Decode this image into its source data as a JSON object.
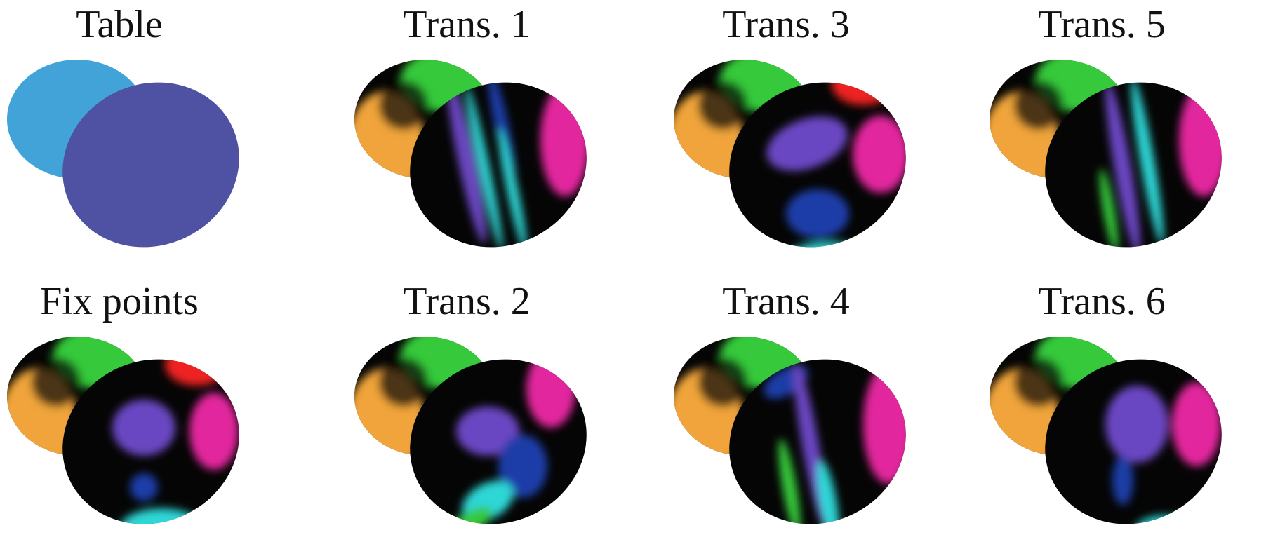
{
  "figure": {
    "panels": [
      {
        "id": "table",
        "label": "Table",
        "style": "flat"
      },
      {
        "id": "trans1",
        "label": "Trans. 1",
        "style": "stripes-a"
      },
      {
        "id": "trans3",
        "label": "Trans. 3",
        "style": "blobs-a"
      },
      {
        "id": "trans5",
        "label": "Trans. 5",
        "style": "stripes-b"
      },
      {
        "id": "fixpoints",
        "label": "Fix points",
        "style": "blobs-b"
      },
      {
        "id": "trans2",
        "label": "Trans. 2",
        "style": "mixed-a"
      },
      {
        "id": "trans4",
        "label": "Trans. 4",
        "style": "stripes-c"
      },
      {
        "id": "trans6",
        "label": "Trans. 6",
        "style": "blobs-c"
      }
    ],
    "colors": {
      "table_light": "#42a3d9",
      "table_dark": "#4f52a2",
      "orange": "#f0a43a",
      "green": "#36c93a",
      "purple": "#6b47c2",
      "magenta": "#e2259d",
      "red": "#ee2222",
      "cyan": "#2fd6d6",
      "blue": "#1f3da8",
      "black": "#050505"
    }
  }
}
